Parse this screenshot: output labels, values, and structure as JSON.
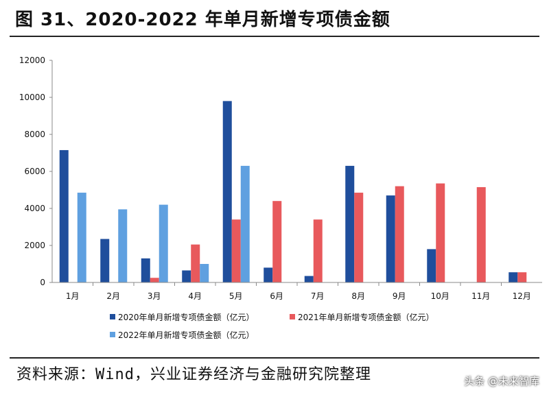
{
  "page": {
    "title": "图 31、2020-2022 年单月新增专项债金额",
    "source": "资料来源：Wind，兴业证券经济与金融研究院整理",
    "watermark": "头条 @未来智库"
  },
  "chart_data": {
    "type": "bar",
    "title": "",
    "xlabel": "",
    "ylabel": "",
    "ylim": [
      0,
      12000
    ],
    "yticks": [
      0,
      2000,
      4000,
      6000,
      8000,
      10000,
      12000
    ],
    "categories": [
      "1月",
      "2月",
      "3月",
      "4月",
      "5月",
      "6月",
      "7月",
      "8月",
      "9月",
      "10月",
      "11月",
      "12月"
    ],
    "series": [
      {
        "name": "2020年单月新增专项债金额（亿元）",
        "color": "#1f4e9c",
        "values": [
          7150,
          2350,
          1300,
          650,
          9800,
          800,
          350,
          6300,
          4700,
          1800,
          null,
          550
        ]
      },
      {
        "name": "2021年单月新增专项债金额（亿元）",
        "color": "#e8595c",
        "values": [
          null,
          null,
          250,
          2050,
          3400,
          4400,
          3400,
          4850,
          5200,
          5350,
          5150,
          550
        ]
      },
      {
        "name": "2022年单月新增专项债金额（亿元）",
        "color": "#5fa0e0",
        "values": [
          4850,
          3950,
          4200,
          1000,
          6300,
          null,
          null,
          null,
          null,
          null,
          null,
          null
        ]
      }
    ],
    "legend_position": "bottom",
    "grid": false
  }
}
